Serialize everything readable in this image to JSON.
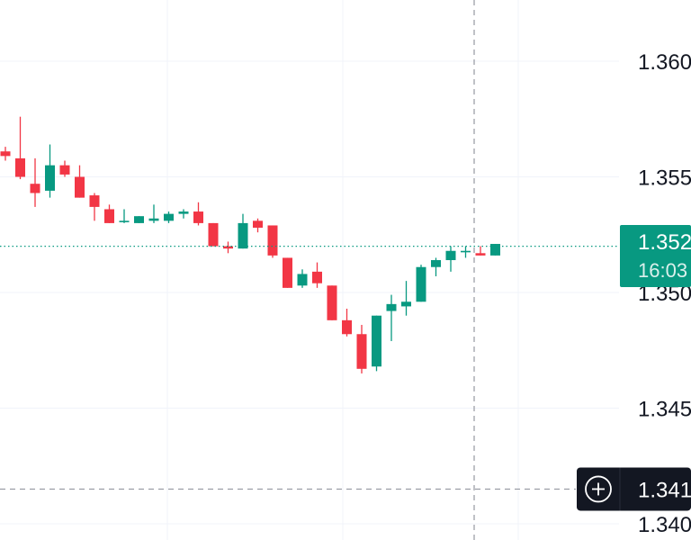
{
  "chart_data": {
    "type": "candlestick",
    "title": "",
    "xlabel": "",
    "ylabel": "",
    "ylim": [
      1.3395,
      1.3624
    ],
    "y_ticks": [
      {
        "value": 1.36,
        "label": "1.360"
      },
      {
        "value": 1.355,
        "label": "1.355"
      },
      {
        "value": 1.35,
        "label": "1.350"
      },
      {
        "value": 1.345,
        "label": "1.345"
      },
      {
        "value": 1.34,
        "label": "1.340"
      }
    ],
    "grid": true,
    "colors": {
      "up": "#089981",
      "down": "#F23645",
      "grid": "#F0F3FA",
      "price_line": "#089981",
      "crosshair": "#9598A1"
    },
    "candles": [
      {
        "o": 1.3561,
        "h": 1.3563,
        "l": 1.3557,
        "c": 1.3559
      },
      {
        "o": 1.3558,
        "h": 1.3576,
        "l": 1.3549,
        "c": 1.355
      },
      {
        "o": 1.3547,
        "h": 1.3558,
        "l": 1.3537,
        "c": 1.3543
      },
      {
        "o": 1.3544,
        "h": 1.3564,
        "l": 1.3541,
        "c": 1.3555
      },
      {
        "o": 1.3555,
        "h": 1.3557,
        "l": 1.355,
        "c": 1.3551
      },
      {
        "o": 1.355,
        "h": 1.3555,
        "l": 1.3541,
        "c": 1.3541
      },
      {
        "o": 1.3542,
        "h": 1.3543,
        "l": 1.3531,
        "c": 1.3537
      },
      {
        "o": 1.3536,
        "h": 1.3538,
        "l": 1.353,
        "c": 1.353
      },
      {
        "o": 1.3531,
        "h": 1.3536,
        "l": 1.353,
        "c": 1.3531
      },
      {
        "o": 1.353,
        "h": 1.3533,
        "l": 1.353,
        "c": 1.3533
      },
      {
        "o": 1.3531,
        "h": 1.3538,
        "l": 1.353,
        "c": 1.3532
      },
      {
        "o": 1.3531,
        "h": 1.3535,
        "l": 1.353,
        "c": 1.3534
      },
      {
        "o": 1.3534,
        "h": 1.3536,
        "l": 1.3532,
        "c": 1.3535
      },
      {
        "o": 1.3535,
        "h": 1.3539,
        "l": 1.3529,
        "c": 1.353
      },
      {
        "o": 1.353,
        "h": 1.353,
        "l": 1.352,
        "c": 1.352
      },
      {
        "o": 1.352,
        "h": 1.3522,
        "l": 1.3517,
        "c": 1.3519
      },
      {
        "o": 1.3519,
        "h": 1.3534,
        "l": 1.3519,
        "c": 1.353
      },
      {
        "o": 1.3531,
        "h": 1.3532,
        "l": 1.3526,
        "c": 1.3528
      },
      {
        "o": 1.3529,
        "h": 1.3529,
        "l": 1.3515,
        "c": 1.3516
      },
      {
        "o": 1.3515,
        "h": 1.3515,
        "l": 1.3502,
        "c": 1.3502
      },
      {
        "o": 1.3503,
        "h": 1.351,
        "l": 1.3502,
        "c": 1.3508
      },
      {
        "o": 1.3509,
        "h": 1.3513,
        "l": 1.3502,
        "c": 1.3504
      },
      {
        "o": 1.3503,
        "h": 1.3503,
        "l": 1.3488,
        "c": 1.3488
      },
      {
        "o": 1.3488,
        "h": 1.3493,
        "l": 1.3481,
        "c": 1.3482
      },
      {
        "o": 1.3482,
        "h": 1.3486,
        "l": 1.3465,
        "c": 1.3467
      },
      {
        "o": 1.3468,
        "h": 1.349,
        "l": 1.3466,
        "c": 1.349
      },
      {
        "o": 1.3492,
        "h": 1.3499,
        "l": 1.3479,
        "c": 1.3495
      },
      {
        "o": 1.3494,
        "h": 1.3505,
        "l": 1.349,
        "c": 1.3496
      },
      {
        "o": 1.3496,
        "h": 1.3512,
        "l": 1.3496,
        "c": 1.3511
      },
      {
        "o": 1.3511,
        "h": 1.3515,
        "l": 1.3507,
        "c": 1.3514
      },
      {
        "o": 1.3514,
        "h": 1.352,
        "l": 1.3509,
        "c": 1.3518
      },
      {
        "o": 1.3518,
        "h": 1.352,
        "l": 1.3515,
        "c": 1.3518
      },
      {
        "o": 1.3517,
        "h": 1.352,
        "l": 1.3516,
        "c": 1.3516
      },
      {
        "o": 1.3516,
        "h": 1.3521,
        "l": 1.3516,
        "c": 1.3521
      }
    ],
    "current_price": {
      "value": 1.352,
      "label": "1.352",
      "countdown": "16:03"
    },
    "crosshair": {
      "value": 1.3415,
      "label": "1.341"
    }
  }
}
